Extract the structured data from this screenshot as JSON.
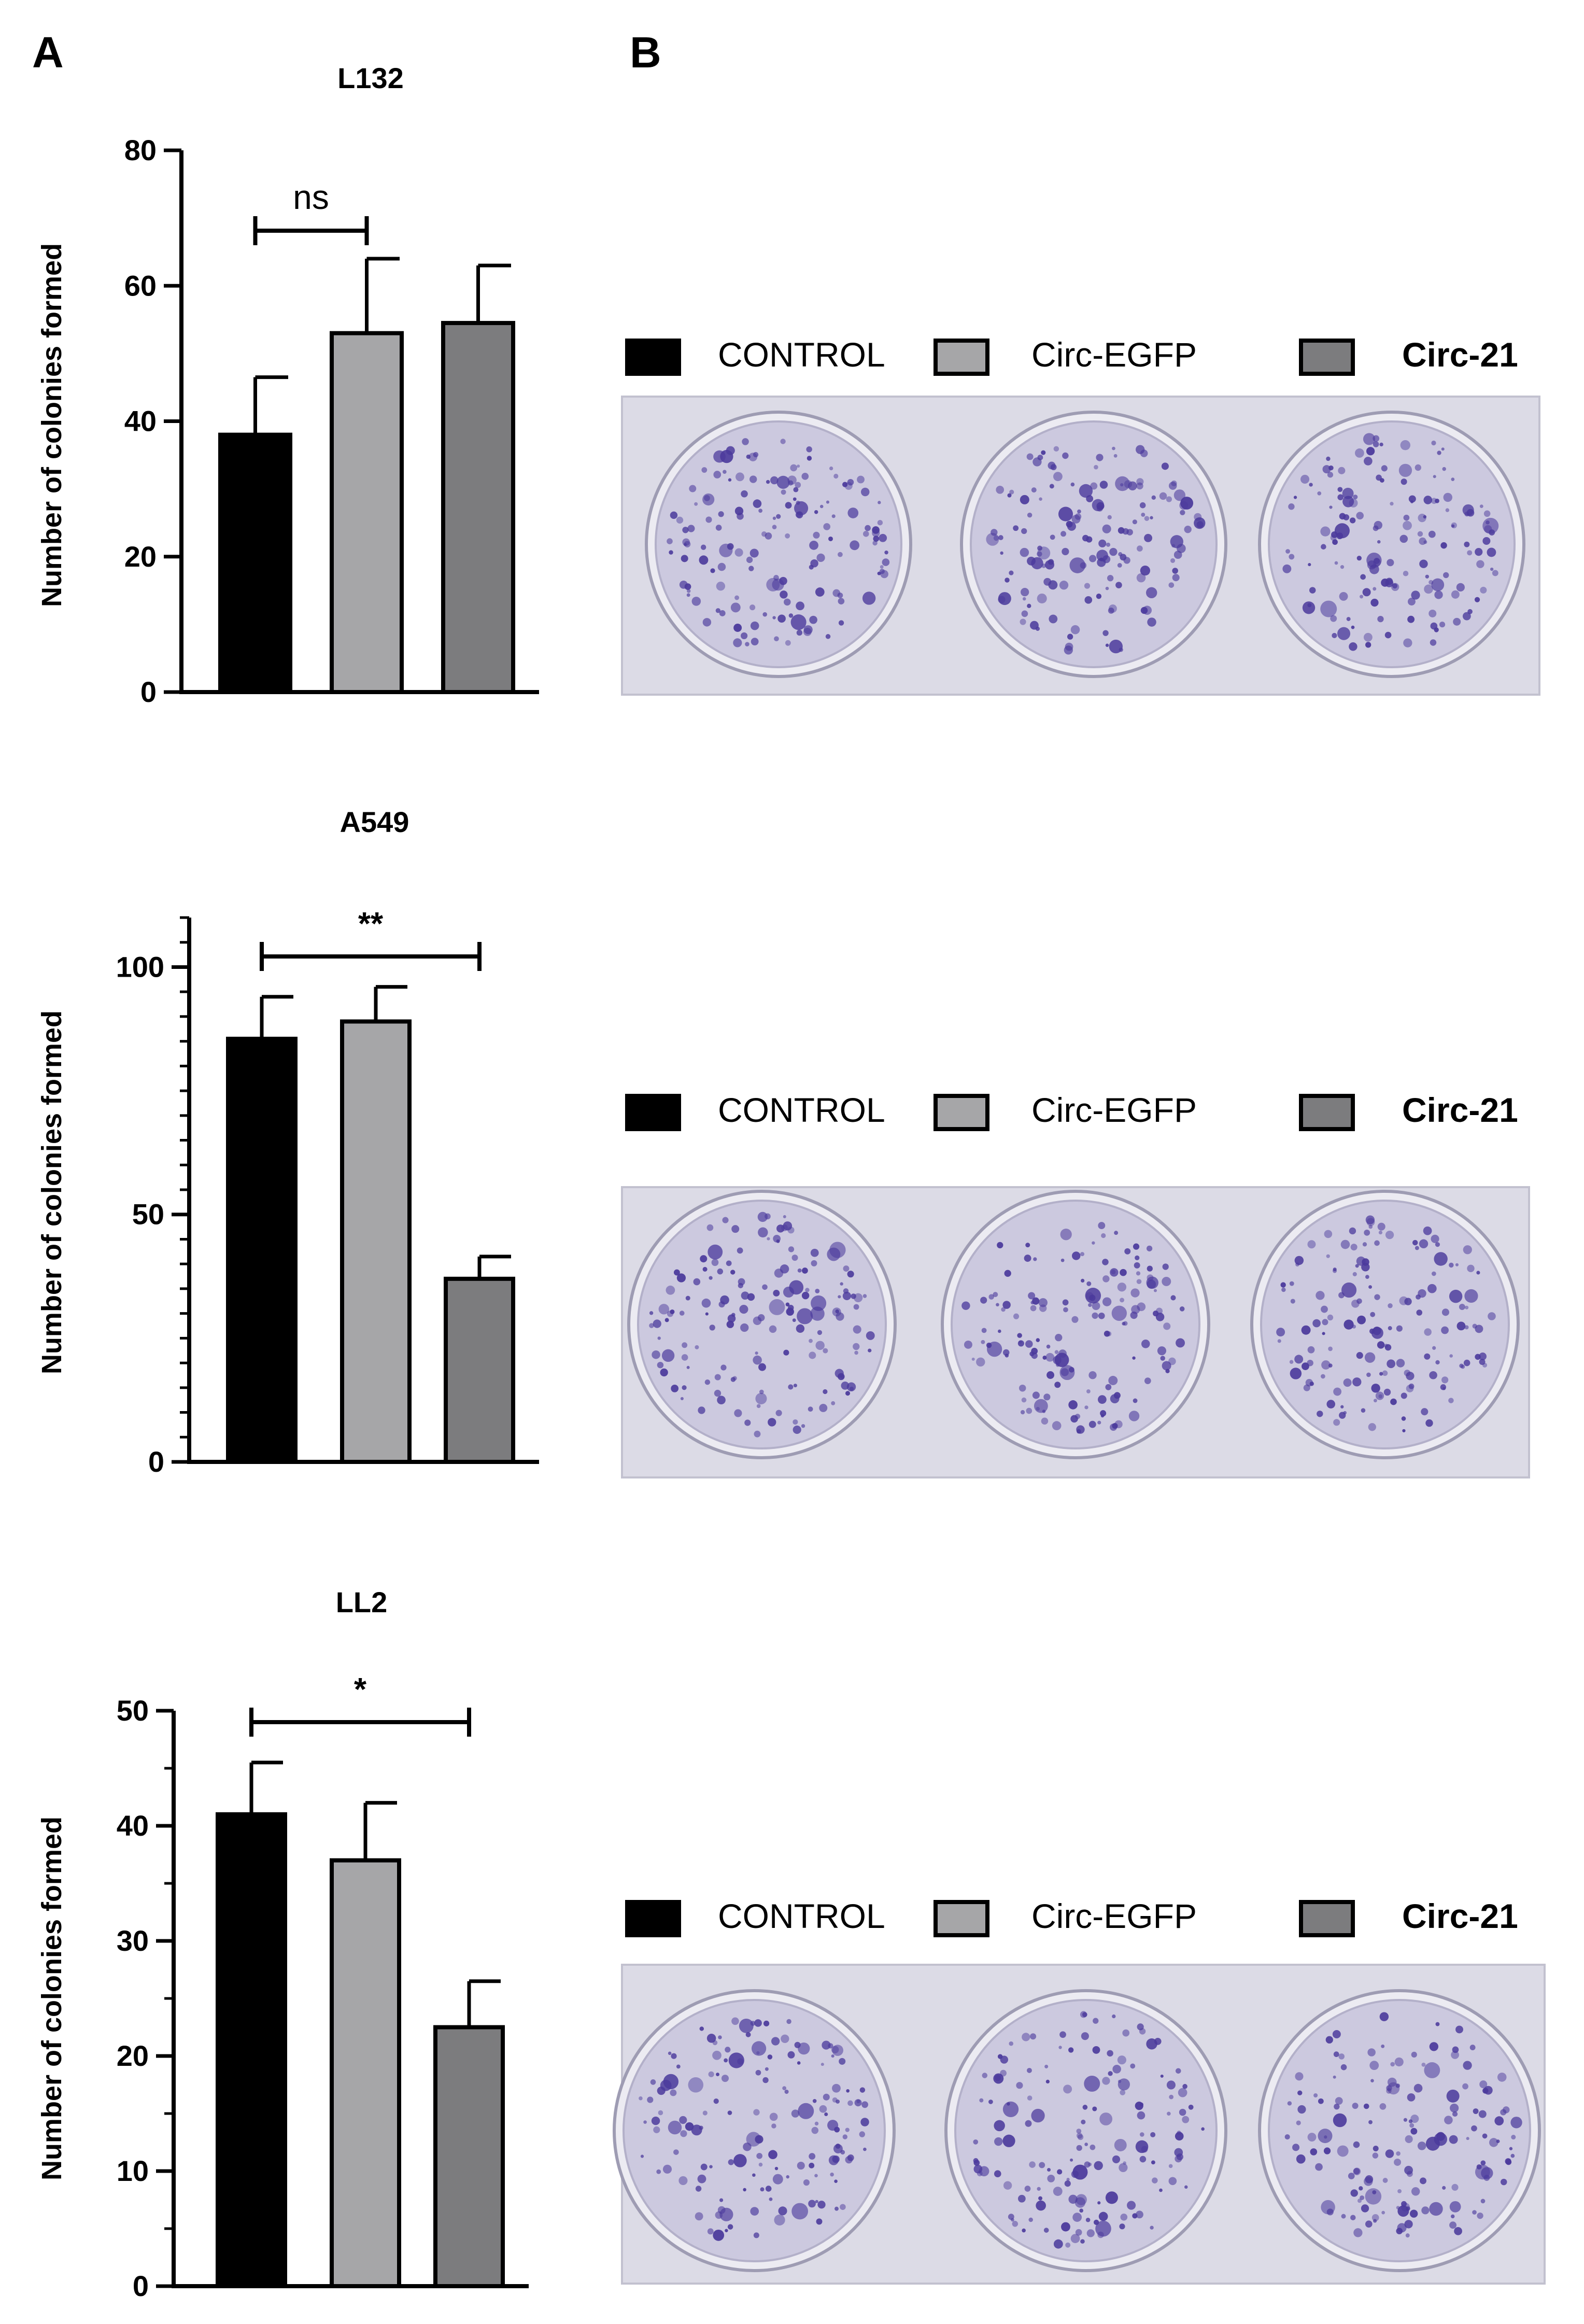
{
  "panels": {
    "a": "A",
    "b": "B"
  },
  "colors": {
    "CONTROL": "#000000",
    "Circ-EGFP": "#a6a6a8",
    "Circ-21": "#7c7c7e",
    "plate_bg": "#dcdbe6",
    "plate_edge": "#c2c1cf",
    "well_fill": "#ccc9df",
    "colony": "#4b3a9c"
  },
  "chart_data": [
    {
      "type": "bar",
      "title": "L132",
      "ylabel": "Number of colonies formed",
      "categories": [
        "CONTROL",
        "Circ-EGFP",
        "Circ-21"
      ],
      "values": [
        38,
        53,
        54.5
      ],
      "errors": [
        8.5,
        11,
        8.5
      ],
      "ylim": [
        0,
        80
      ],
      "yticks": [
        "0",
        "20",
        "40",
        "60",
        "80"
      ],
      "significance": {
        "label": "ns",
        "from": 0,
        "to": 1
      }
    },
    {
      "type": "bar",
      "title": "A549",
      "ylabel": "Number of colonies formed",
      "categories": [
        "CONTROL",
        "Circ-EGFP",
        "Circ-21"
      ],
      "values": [
        85.5,
        89,
        37
      ],
      "errors": [
        8.5,
        7,
        4.5
      ],
      "ylim": [
        0,
        110
      ],
      "yticks": [
        "0",
        "50",
        "100"
      ],
      "significance": {
        "label": "**",
        "from": 0,
        "to": 2
      }
    },
    {
      "type": "bar",
      "title": "LL2",
      "ylabel": "Number of colonies formed",
      "categories": [
        "CONTROL",
        "Circ-EGFP",
        "Circ-21"
      ],
      "values": [
        41,
        37,
        22.5
      ],
      "errors": [
        4.5,
        5,
        4
      ],
      "ylim": [
        0,
        50
      ],
      "yticks": [
        "0",
        "10",
        "20",
        "30",
        "40",
        "50"
      ],
      "significance": {
        "label": "*",
        "from": 0,
        "to": 2
      }
    }
  ],
  "legends": [
    [
      "CONTROL",
      "Circ-EGFP",
      "Circ-21"
    ],
    [
      "CONTROL",
      "Circ-EGFP",
      "Circ-21"
    ],
    [
      "CONTROL",
      "Circ-EGFP",
      "Circ-21"
    ]
  ]
}
